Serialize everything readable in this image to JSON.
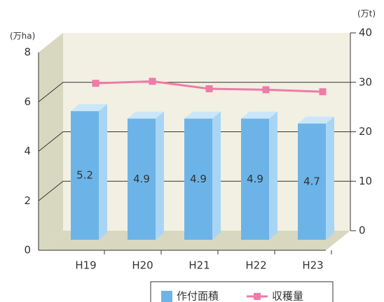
{
  "chart_data": {
    "type": "bar",
    "ylabel": "(万ha)",
    "y2label": "(万t)",
    "categories": [
      "H19",
      "H20",
      "H21",
      "H22",
      "H23"
    ],
    "series": [
      {
        "name": "作付面積",
        "color": "#6cb4e8",
        "values": [
          5.2,
          4.9,
          4.9,
          4.9,
          4.7
        ]
      },
      {
        "name": "収穫量",
        "color": "#f07aa8",
        "axis": "y2",
        "values": [
          29.8,
          30.2,
          28.7,
          28.5,
          28.1
        ]
      }
    ],
    "ylim": [
      0,
      8
    ],
    "yticks": [
      0,
      2,
      4,
      6,
      8
    ],
    "y2lim": [
      0,
      40
    ],
    "y2ticks": [
      0,
      10,
      20,
      30,
      40
    ],
    "grid": true
  }
}
